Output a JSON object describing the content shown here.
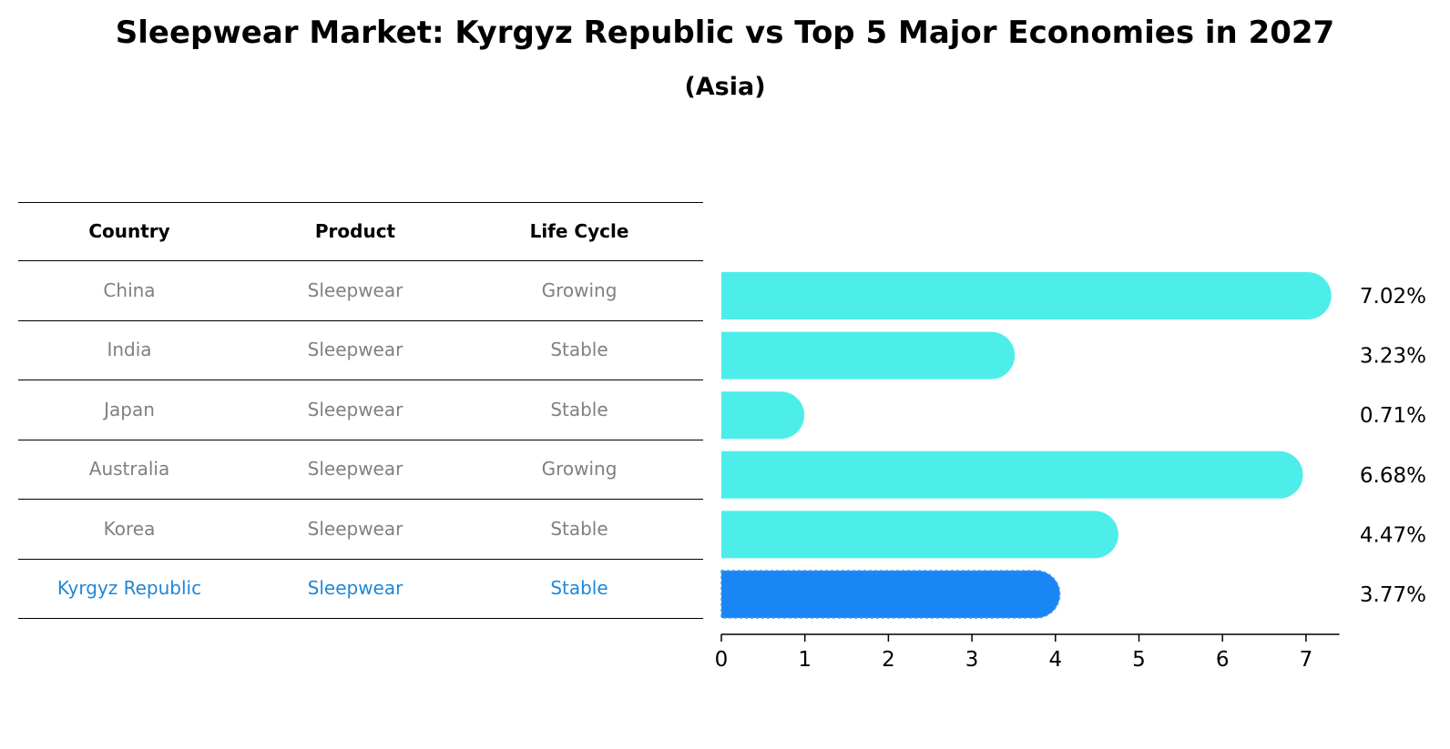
{
  "title": "Sleepwear Market: Kyrgyz Republic vs Top 5 Major Economies in 2027",
  "subtitle": "(Asia)",
  "table": {
    "headers": [
      "Country",
      "Product",
      "Life Cycle"
    ],
    "rows": [
      [
        "China",
        "Sleepwear",
        "Growing"
      ],
      [
        "India",
        "Sleepwear",
        "Stable"
      ],
      [
        "Japan",
        "Sleepwear",
        "Stable"
      ],
      [
        "Australia",
        "Sleepwear",
        "Growing"
      ],
      [
        "Korea",
        "Sleepwear",
        "Stable"
      ],
      [
        "Kyrgyz Republic",
        "Sleepwear",
        "Stable"
      ]
    ],
    "highlight_row": 5,
    "text_color": "#808080",
    "highlight_color": "#1f87d6"
  },
  "chart_data": {
    "type": "bar",
    "orientation": "horizontal",
    "categories": [
      "China",
      "India",
      "Japan",
      "Australia",
      "Korea",
      "Kyrgyz Republic"
    ],
    "values": [
      7.02,
      3.23,
      0.71,
      6.68,
      4.47,
      3.77
    ],
    "value_labels": [
      "7.02%",
      "3.23%",
      "0.71%",
      "6.68%",
      "4.47%",
      "3.77%"
    ],
    "xlim": [
      0,
      7.4
    ],
    "xticks": [
      0,
      1,
      2,
      3,
      4,
      5,
      6,
      7
    ],
    "bar_color": "#4deeea",
    "highlight_color": "#1a86f5",
    "highlight_index": 5,
    "grid": false
  }
}
